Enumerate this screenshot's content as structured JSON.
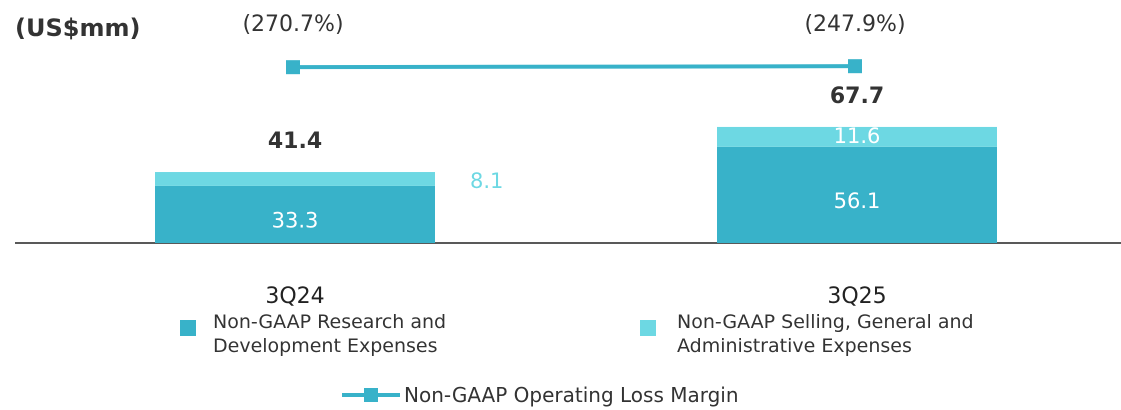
{
  "chart_data": {
    "type": "bar",
    "stacked": true,
    "unit_label": "(US$mm)",
    "categories": [
      "3Q24",
      "3Q25"
    ],
    "series": [
      {
        "name": "Non-GAAP Research and Development Expenses",
        "color": "#38b2c9",
        "values": [
          33.3,
          56.1
        ]
      },
      {
        "name": "Non-GAAP Selling, General and Administrative Expenses",
        "color": "#6dd8e3",
        "values": [
          8.1,
          11.6
        ]
      },
      {
        "name": "Non-GAAP Operating Loss Margin",
        "type": "line",
        "axis": "y2",
        "color": "#38b2c9",
        "values": [
          -270.7,
          -247.9
        ],
        "value_labels": [
          "(270.7%)",
          "(247.9%)"
        ]
      }
    ],
    "totals": [
      41.4,
      67.7
    ],
    "ylim": [
      0,
      140
    ],
    "y2lim": [
      -4300,
      1200
    ],
    "grid": false
  }
}
